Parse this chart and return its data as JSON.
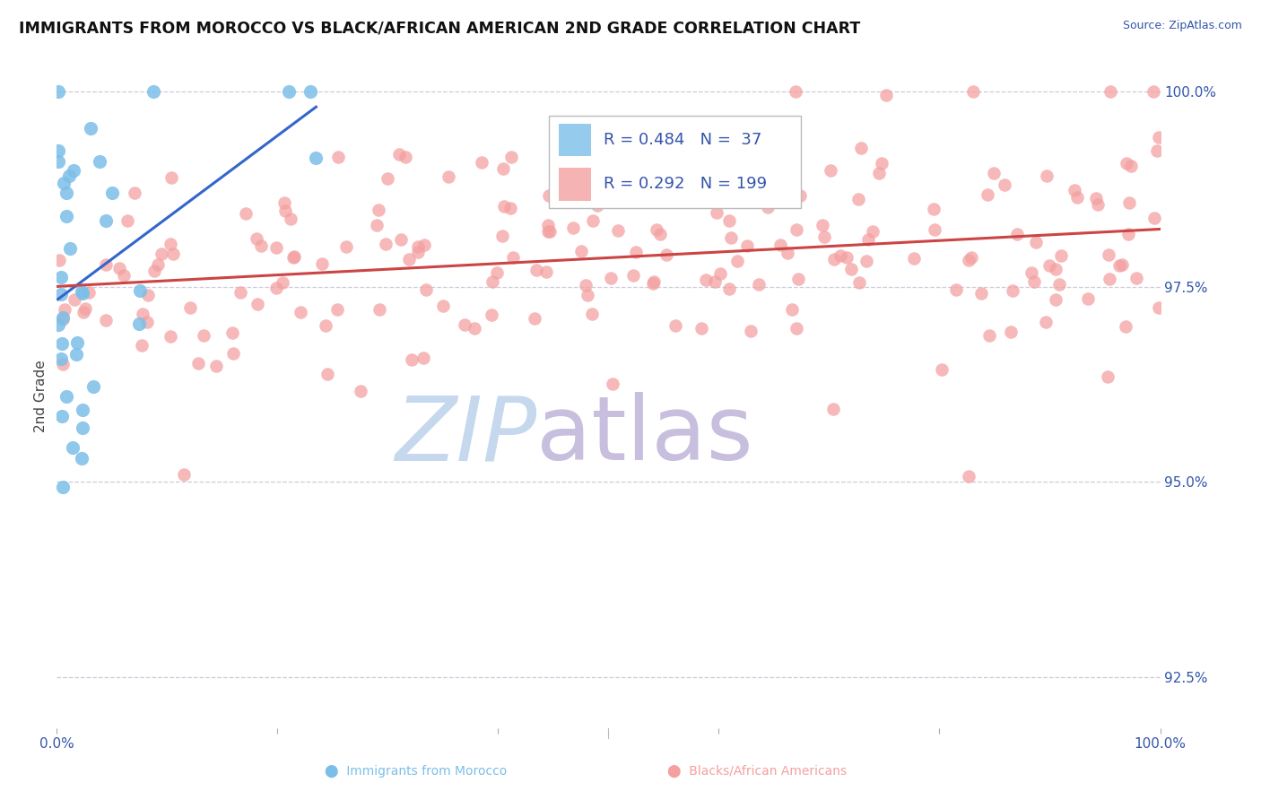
{
  "title": "IMMIGRANTS FROM MOROCCO VS BLACK/AFRICAN AMERICAN 2ND GRADE CORRELATION CHART",
  "source": "Source: ZipAtlas.com",
  "ylabel": "2nd Grade",
  "r_blue": 0.484,
  "n_blue": 37,
  "r_pink": 0.292,
  "n_pink": 199,
  "xlim": [
    0.0,
    1.0
  ],
  "ylim": [
    0.9185,
    1.0035
  ],
  "yticks": [
    0.925,
    0.95,
    0.975,
    1.0
  ],
  "ytick_labels": [
    "92.5%",
    "95.0%",
    "97.5%",
    "100.0%"
  ],
  "xticks": [
    0.0,
    0.2,
    0.4,
    0.6,
    0.8,
    1.0
  ],
  "xtick_labels": [
    "0.0%",
    "",
    "",
    "",
    "",
    "100.0%"
  ],
  "blue_color": "#7bbfe8",
  "pink_color": "#f4a0a0",
  "blue_line_color": "#3366cc",
  "pink_line_color": "#cc4444",
  "watermark_zip_color": "#c5d8ee",
  "watermark_atlas_color": "#c8bedd",
  "legend_border_color": "#bbbbbb",
  "grid_color": "#ccccdd",
  "tick_label_color": "#3355aa",
  "title_color": "#111111",
  "source_color": "#3355aa",
  "seed": 42
}
